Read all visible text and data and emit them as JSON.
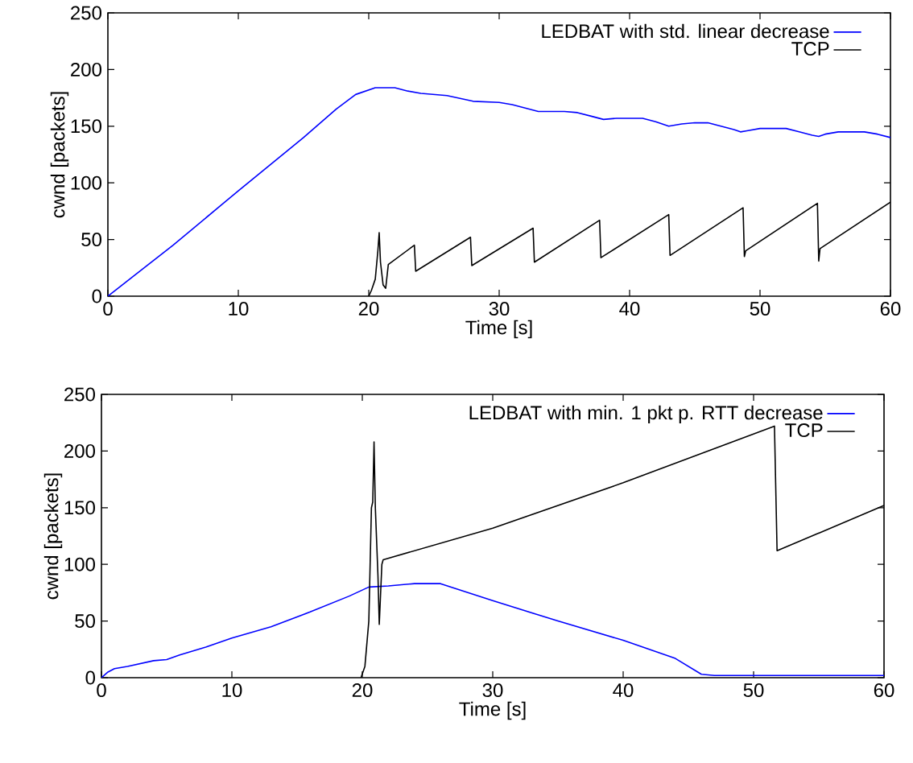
{
  "chart_data": [
    {
      "type": "line",
      "xlabel": "Time [s]",
      "ylabel": "cwnd [packets]",
      "xlim": [
        0,
        60
      ],
      "ylim": [
        0,
        250
      ],
      "xticks": [
        0,
        10,
        20,
        30,
        40,
        50,
        60
      ],
      "yticks": [
        0,
        50,
        100,
        150,
        200,
        250
      ],
      "legend": "top right",
      "series": [
        {
          "name": "LEDBAT with std. linear decrease",
          "color": "#0000ff",
          "x": [
            0,
            2,
            5,
            10,
            15,
            17.5,
            19,
            20.5,
            22,
            23,
            24,
            26,
            28,
            30,
            31,
            32,
            33,
            35,
            36,
            37,
            38,
            39,
            41,
            42,
            43,
            44,
            45,
            46,
            47,
            48,
            48.5,
            49,
            50,
            52,
            53,
            54,
            54.5,
            55,
            56,
            58,
            59,
            60
          ],
          "values": [
            0,
            18,
            45,
            93,
            140,
            165,
            178,
            184,
            184,
            181,
            179,
            177,
            172,
            171,
            169,
            166,
            163,
            163,
            162,
            159,
            156,
            157,
            157,
            154,
            150,
            152,
            153,
            153,
            150,
            147,
            145,
            146,
            148,
            148,
            145,
            142,
            141,
            143,
            145,
            145,
            143,
            140
          ]
        },
        {
          "name": "TCP",
          "color": "#000000",
          "x": [
            20,
            20.2,
            20.5,
            20.7,
            20.8,
            20.9,
            21.1,
            21.3,
            21.5,
            23.5,
            23.6,
            27.8,
            27.9,
            32.6,
            32.7,
            37.7,
            37.8,
            43,
            43.1,
            48.7,
            48.8,
            48.9,
            54.4,
            54.5,
            54.6,
            60
          ],
          "values": [
            0,
            5,
            15,
            40,
            56,
            30,
            10,
            7,
            28,
            45,
            22,
            52,
            27,
            60,
            30,
            67,
            34,
            72,
            36,
            78,
            35,
            40,
            82,
            31,
            42,
            83
          ]
        }
      ]
    },
    {
      "type": "line",
      "xlabel": "Time [s]",
      "ylabel": "cwnd [packets]",
      "xlim": [
        0,
        60
      ],
      "ylim": [
        0,
        250
      ],
      "xticks": [
        0,
        10,
        20,
        30,
        40,
        50,
        60
      ],
      "yticks": [
        0,
        50,
        100,
        150,
        200,
        250
      ],
      "legend": "top right",
      "series": [
        {
          "name": "LEDBAT with min. 1 pkt p. RTT decrease",
          "color": "#0000ff",
          "x": [
            0,
            0.5,
            1,
            2,
            4,
            5,
            6,
            8,
            10,
            13,
            16,
            19,
            20.5,
            22,
            24,
            26,
            30,
            35,
            40,
            44,
            45,
            46,
            47,
            60
          ],
          "values": [
            0,
            5,
            8,
            10,
            15,
            16,
            20,
            27,
            35,
            45,
            58,
            72,
            80,
            81,
            83,
            83,
            68,
            50,
            33,
            17,
            10,
            3,
            2,
            2
          ]
        },
        {
          "name": "TCP",
          "color": "#000000",
          "x": [
            19.9,
            20.2,
            20.5,
            20.7,
            20.8,
            20.9,
            21.0,
            21.2,
            21.3,
            21.5,
            21.6,
            30,
            40,
            51.6,
            51.8,
            60
          ],
          "values": [
            0,
            10,
            50,
            150,
            155,
            208,
            150,
            90,
            47,
            100,
            104,
            132,
            172,
            222,
            112,
            152
          ]
        }
      ]
    }
  ]
}
